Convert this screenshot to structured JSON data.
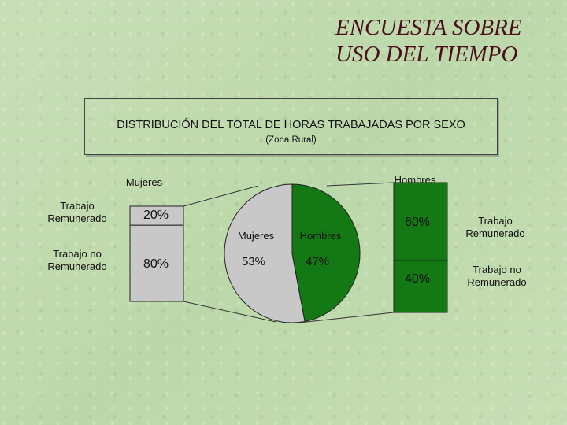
{
  "header": {
    "title_line1": "ENCUESTA SOBRE",
    "title_line2": "USO DEL TIEMPO"
  },
  "subtitle": {
    "main": "DISTRIBUCIÓN DEL TOTAL DE HORAS TRABAJADAS POR SEXO",
    "sub": "(Zona Rural)"
  },
  "colors": {
    "mujeres": "#c8c8c8",
    "hombres": "#147814",
    "title": "#4a0d1a"
  },
  "chart_data": [
    {
      "type": "pie",
      "labels": [
        "Mujeres",
        "Hombres"
      ],
      "values": [
        53,
        47
      ],
      "value_labels": [
        "53%",
        "47%"
      ]
    },
    {
      "type": "bar",
      "stacked": true,
      "title": "Mujeres",
      "categories": [
        "Trabajo Remunerado",
        "Trabajo no Remunerado"
      ],
      "category_labels": [
        "Trabajo\nRemunerado",
        "Trabajo no\nRemunerado"
      ],
      "values": [
        20,
        80
      ],
      "value_labels": [
        "20%",
        "80%"
      ]
    },
    {
      "type": "bar",
      "stacked": true,
      "title": "Hombres",
      "categories": [
        "Trabajo Remunerado",
        "Trabajo no Remunerado"
      ],
      "category_labels": [
        "Trabajo\nRemunerado",
        "Trabajo no\nRemunerado"
      ],
      "values": [
        60,
        40
      ],
      "value_labels": [
        "60%",
        "40%"
      ]
    }
  ]
}
